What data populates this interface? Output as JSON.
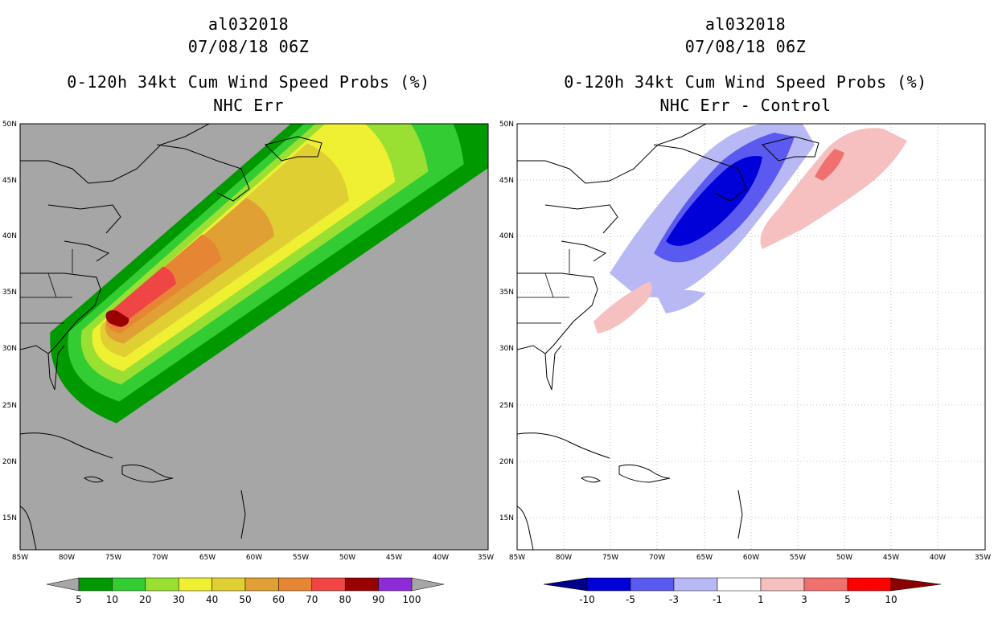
{
  "panels": [
    {
      "title1": "al032018",
      "title2": "07/08/18 06Z",
      "title3": "0-120h 34kt Cum Wind Speed Probs (%)",
      "title4": "NHC Err",
      "colorbar": {
        "colors": [
          "#009900",
          "#33cc33",
          "#99e033",
          "#f0f033",
          "#e0cf33",
          "#e0a033",
          "#e68533",
          "#f04545",
          "#990000",
          "#8e2bd9"
        ],
        "end_colors": [
          "#a6a6a6",
          "#a6a6a6"
        ],
        "labels": [
          "5",
          "10",
          "20",
          "30",
          "40",
          "50",
          "60",
          "70",
          "80",
          "90",
          "100"
        ]
      }
    },
    {
      "title1": "al032018",
      "title2": "07/08/18 06Z",
      "title3": "0-120h 34kt Cum Wind Speed Probs (%)",
      "title4": "NHC Err - Control",
      "colorbar": {
        "colors": [
          "#0000d9",
          "#5a5af0",
          "#b8b8f5",
          "#ffffff",
          "#f7c0c0",
          "#f07070",
          "#ff0000"
        ],
        "end_colors": [
          "#00008b",
          "#8b0000"
        ],
        "labels": [
          "-10",
          "-5",
          "-3",
          "-1",
          "1",
          "3",
          "5",
          "10"
        ]
      }
    }
  ],
  "axes": {
    "lon_labels": [
      "85W",
      "80W",
      "75W",
      "70W",
      "65W",
      "60W",
      "55W",
      "50W",
      "45W",
      "40W",
      "35W"
    ],
    "lat_labels": [
      "15N",
      "20N",
      "25N",
      "30N",
      "35N",
      "40N",
      "45N",
      "50N"
    ]
  }
}
